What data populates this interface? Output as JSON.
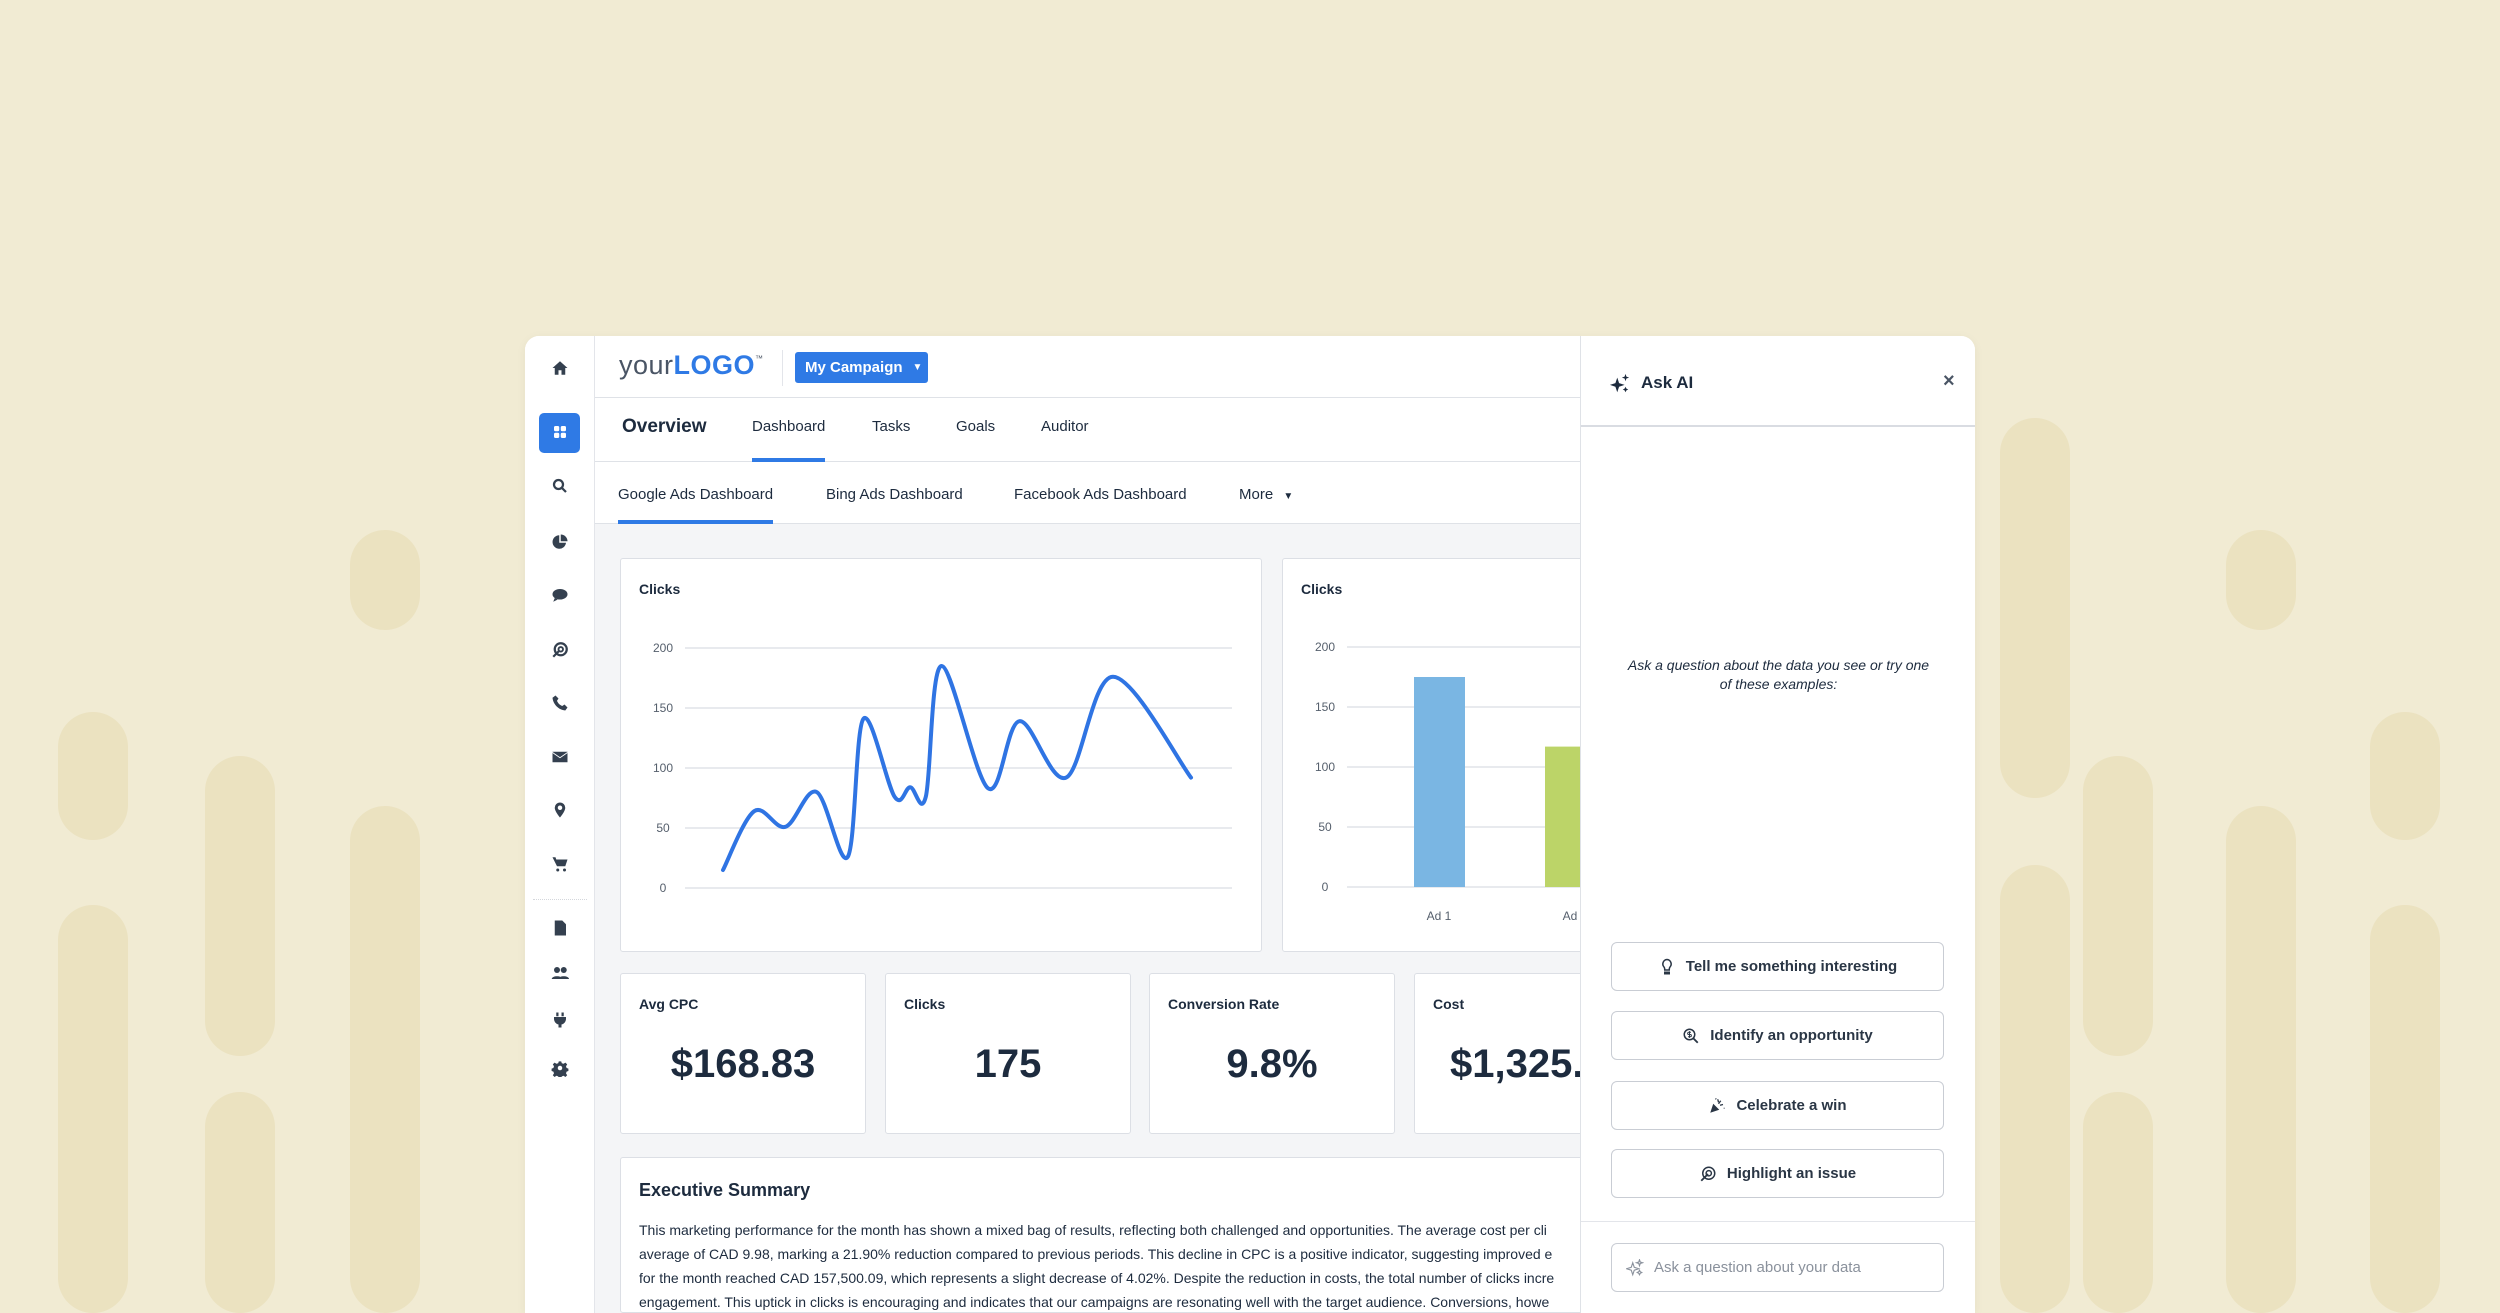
{
  "colors": {
    "accent": "#2f7ae5",
    "line": "#2f74e3",
    "bar_ad1": "#7ab6e3",
    "bar_ad2": "#bcd468",
    "background": "#f1ebd3"
  },
  "sidebar": {
    "items": [
      {
        "icon": "home-icon"
      },
      {
        "icon": "grid-icon",
        "active": true
      },
      {
        "icon": "search-icon"
      },
      {
        "icon": "pie-chart-icon"
      },
      {
        "icon": "chat-icon"
      },
      {
        "icon": "target-icon"
      },
      {
        "icon": "phone-icon"
      },
      {
        "icon": "mail-icon"
      },
      {
        "icon": "map-pin-icon"
      },
      {
        "icon": "cart-icon"
      },
      {
        "icon": "document-icon"
      },
      {
        "icon": "users-icon"
      },
      {
        "icon": "plug-icon"
      },
      {
        "icon": "gear-icon"
      }
    ]
  },
  "header": {
    "logo_prefix": "your",
    "logo_main": "LOGO",
    "logo_tm": "™",
    "campaign": "My Campaign"
  },
  "tabs": {
    "title": "Overview",
    "items": [
      "Dashboard",
      "Tasks",
      "Goals",
      "Auditor"
    ],
    "active": "Dashboard"
  },
  "subtabs": {
    "items": [
      "Google Ads Dashboard",
      "Bing Ads Dashboard",
      "Facebook Ads Dashboard"
    ],
    "more": "More",
    "active": "Google Ads Dashboard"
  },
  "chart_data": [
    {
      "type": "line",
      "title": "Clicks",
      "ylim": [
        0,
        200
      ],
      "yticks": [
        0,
        50,
        100,
        150,
        200
      ],
      "grid": true,
      "x": [
        0,
        2,
        4,
        6,
        8,
        9,
        11,
        12,
        13,
        14,
        17,
        19,
        22,
        25,
        30
      ],
      "values": [
        15,
        64,
        51,
        80,
        26,
        141,
        76,
        84,
        76,
        185,
        83,
        139,
        92,
        176,
        92
      ]
    },
    {
      "type": "bar",
      "title": "Clicks",
      "ylim": [
        0,
        200
      ],
      "yticks": [
        0,
        50,
        100,
        150,
        200
      ],
      "grid": true,
      "categories": [
        "Ad 1",
        "Ad"
      ],
      "values": [
        175,
        117
      ]
    }
  ],
  "kpis": [
    {
      "label": "Avg CPC",
      "value": "$168.83"
    },
    {
      "label": "Clicks",
      "value": "175"
    },
    {
      "label": "Conversion Rate",
      "value": "9.8%"
    },
    {
      "label": "Cost",
      "value": "$1,325."
    }
  ],
  "summary": {
    "title": "Executive Summary",
    "lines": [
      "This marketing performance for the month has shown a mixed bag of results, reflecting both challenged and opportunities. The average cost per cli",
      "average of CAD 9.98, marking a 21.90% reduction compared to previous periods. This decline in CPC is a positive indicator,  suggesting improved e",
      "for the month reached CAD 157,500.09, which represents a slight decrease of 4.02%. Despite the reduction in costs, the total number of clicks incre",
      "engagement. This uptick in clicks is encouraging and indicates that our campaigns are resonating well with the target audience. Conversions, howe"
    ]
  },
  "ai": {
    "title": "Ask AI",
    "close": "×",
    "prompt": "Ask a question about the data you see or try one of these examples:",
    "suggestions": [
      {
        "label": "Tell me something interesting",
        "icon": "lightbulb-icon"
      },
      {
        "label": "Identify an opportunity",
        "icon": "search-dollar-icon"
      },
      {
        "label": "Celebrate a win",
        "icon": "party-popper-icon"
      },
      {
        "label": "Highlight an issue",
        "icon": "target-arrow-icon"
      }
    ],
    "input_placeholder": "Ask a question about your data"
  }
}
